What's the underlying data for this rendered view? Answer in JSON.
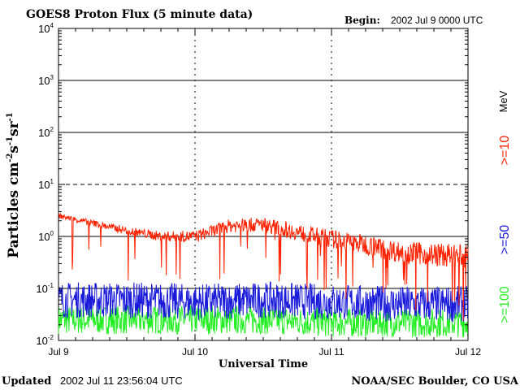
{
  "header": {
    "title": "GOES8 Proton Flux (5 minute data)",
    "begin_label": "Begin:",
    "begin_value": "2002 Jul 9 0000 UTC"
  },
  "footer": {
    "updated_label": "Updated",
    "updated_value": "2002 Jul 11 23:56:04 UTC",
    "credit": "NOAA/SEC Boulder, CO USA"
  },
  "chart_data": {
    "type": "line",
    "ylabel": "Particles cm-2s-1sr-1",
    "xlabel": "Universal Time",
    "y_scale": "log",
    "ylim": [
      0.01,
      10000
    ],
    "y_ticks": [
      {
        "base": "10",
        "exp": "-2"
      },
      {
        "base": "10",
        "exp": "-1"
      },
      {
        "base": "10",
        "exp": "0"
      },
      {
        "base": "10",
        "exp": "1"
      },
      {
        "base": "10",
        "exp": "2"
      },
      {
        "base": "10",
        "exp": "3"
      },
      {
        "base": "10",
        "exp": "4"
      }
    ],
    "x_ticks": [
      "Jul 9",
      "Jul 10",
      "Jul 11",
      "Jul 12"
    ],
    "xlim": [
      "2002-07-09 00:00",
      "2002-07-12 00:00"
    ],
    "unit_label": "MeV",
    "series": [
      {
        "name": ">=10",
        "color": "#ff2200",
        "x": [
          "2002-07-09 00:00",
          "2002-07-09 06:00",
          "2002-07-09 12:00",
          "2002-07-09 18:00",
          "2002-07-10 00:00",
          "2002-07-10 06:00",
          "2002-07-10 12:00",
          "2002-07-10 18:00",
          "2002-07-11 00:00",
          "2002-07-11 06:00",
          "2002-07-11 12:00",
          "2002-07-11 18:00",
          "2002-07-11 23:55"
        ],
        "values": [
          2.5,
          1.8,
          1.3,
          1.0,
          1.0,
          1.6,
          1.7,
          1.2,
          0.9,
          0.7,
          0.5,
          0.45,
          0.4
        ]
      },
      {
        "name": ">=50",
        "color": "#1a1adb",
        "x": [
          "2002-07-09 00:00",
          "2002-07-09 12:00",
          "2002-07-10 00:00",
          "2002-07-10 12:00",
          "2002-07-11 00:00",
          "2002-07-11 12:00",
          "2002-07-11 23:55"
        ],
        "values": [
          0.06,
          0.06,
          0.055,
          0.06,
          0.055,
          0.05,
          0.05
        ]
      },
      {
        "name": ">=100",
        "color": "#22ee22",
        "x": [
          "2002-07-09 00:00",
          "2002-07-09 12:00",
          "2002-07-10 00:00",
          "2002-07-10 12:00",
          "2002-07-11 00:00",
          "2002-07-11 12:00",
          "2002-07-11 23:55"
        ],
        "values": [
          0.025,
          0.025,
          0.025,
          0.025,
          0.022,
          0.022,
          0.022
        ]
      }
    ]
  }
}
